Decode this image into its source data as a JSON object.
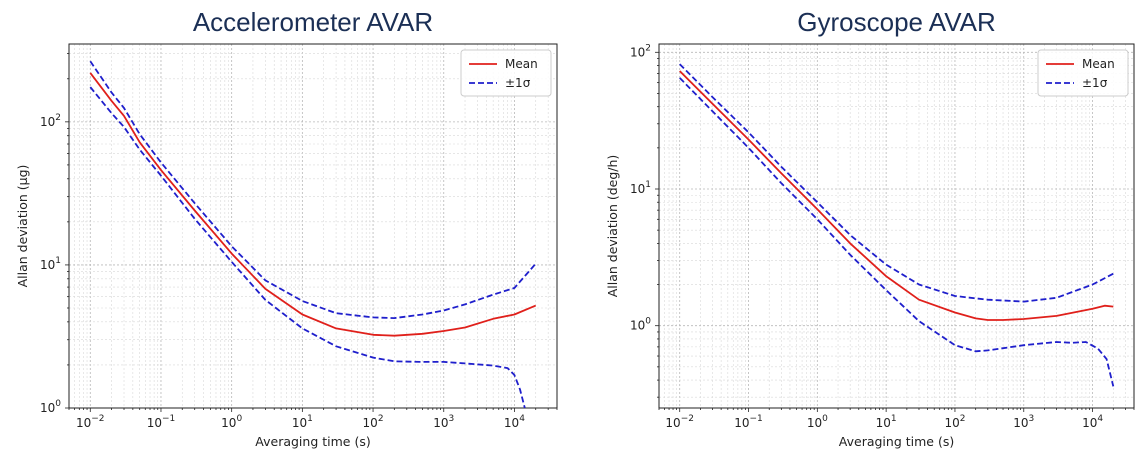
{
  "chart_data": [
    {
      "type": "line",
      "title": "Accelerometer AVAR",
      "xlabel": "Averaging time (s)",
      "ylabel": "Allan deviation (μg)",
      "xscale": "log",
      "yscale": "log",
      "xlim": [
        0.005,
        40000
      ],
      "ylim": [
        1,
        350
      ],
      "grid": true,
      "legend_location": "upper right",
      "xticks": [
        {
          "value": 0.01,
          "base": "10",
          "exp": "−2"
        },
        {
          "value": 0.1,
          "base": "10",
          "exp": "−1"
        },
        {
          "value": 1,
          "base": "10",
          "exp": "0"
        },
        {
          "value": 10,
          "base": "10",
          "exp": "1"
        },
        {
          "value": 100,
          "base": "10",
          "exp": "2"
        },
        {
          "value": 1000,
          "base": "10",
          "exp": "3"
        },
        {
          "value": 10000,
          "base": "10",
          "exp": "4"
        }
      ],
      "yticks": [
        {
          "value": 1,
          "base": "10",
          "exp": "0"
        },
        {
          "value": 10,
          "base": "10",
          "exp": "1"
        },
        {
          "value": 100,
          "base": "10",
          "exp": "2"
        }
      ],
      "series": [
        {
          "name": "Mean",
          "style": "solid",
          "color": "#e0201b",
          "x": [
            0.01,
            0.02,
            0.03,
            0.05,
            0.1,
            0.3,
            1,
            3,
            10,
            30,
            100,
            200,
            500,
            1000,
            2000,
            5000,
            10000,
            20000
          ],
          "y": [
            220,
            140,
            110,
            72,
            46,
            24,
            12,
            6.8,
            4.5,
            3.6,
            3.25,
            3.2,
            3.3,
            3.45,
            3.65,
            4.2,
            4.5,
            5.2
          ]
        },
        {
          "name": "+1σ",
          "style": "dashed",
          "color": "#1f1fcc",
          "show_in_legend": true,
          "legend_label": "±1σ",
          "x": [
            0.01,
            0.02,
            0.03,
            0.05,
            0.1,
            0.3,
            1,
            3,
            10,
            30,
            100,
            200,
            500,
            1000,
            2000,
            5000,
            10000,
            20000
          ],
          "y": [
            265,
            160,
            125,
            82,
            52,
            27,
            13.5,
            7.8,
            5.6,
            4.6,
            4.3,
            4.25,
            4.5,
            4.8,
            5.3,
            6.2,
            6.9,
            10.2
          ]
        },
        {
          "name": "-1σ",
          "style": "dashed",
          "color": "#1f1fcc",
          "show_in_legend": false,
          "x": [
            0.01,
            0.02,
            0.03,
            0.05,
            0.1,
            0.3,
            1,
            3,
            10,
            30,
            100,
            200,
            500,
            1000,
            2000,
            5000,
            8000,
            10000,
            12000,
            14000
          ],
          "y": [
            175,
            115,
            92,
            64,
            42,
            21,
            10.5,
            5.7,
            3.6,
            2.7,
            2.25,
            2.12,
            2.1,
            2.1,
            2.05,
            1.98,
            1.9,
            1.7,
            1.35,
            1.0
          ]
        }
      ]
    },
    {
      "type": "line",
      "title": "Gyroscope AVAR",
      "xlabel": "Averaging time (s)",
      "ylabel": "Allan deviation (deg/h)",
      "xscale": "log",
      "yscale": "log",
      "xlim": [
        0.005,
        40000
      ],
      "ylim": [
        0.25,
        115
      ],
      "grid": true,
      "legend_location": "upper right",
      "xticks": [
        {
          "value": 0.01,
          "base": "10",
          "exp": "−2"
        },
        {
          "value": 0.1,
          "base": "10",
          "exp": "−1"
        },
        {
          "value": 1,
          "base": "10",
          "exp": "0"
        },
        {
          "value": 10,
          "base": "10",
          "exp": "1"
        },
        {
          "value": 100,
          "base": "10",
          "exp": "2"
        },
        {
          "value": 1000,
          "base": "10",
          "exp": "3"
        },
        {
          "value": 10000,
          "base": "10",
          "exp": "4"
        }
      ],
      "yticks": [
        {
          "value": 1,
          "base": "10",
          "exp": "0"
        },
        {
          "value": 10,
          "base": "10",
          "exp": "1"
        },
        {
          "value": 100,
          "base": "10",
          "exp": "2"
        }
      ],
      "series": [
        {
          "name": "Mean",
          "style": "solid",
          "color": "#e0201b",
          "x": [
            0.01,
            0.03,
            0.1,
            0.3,
            1,
            3,
            10,
            30,
            100,
            200,
            300,
            500,
            1000,
            3000,
            10000,
            15000,
            20000
          ],
          "y": [
            73,
            42,
            23,
            13,
            7.1,
            4.0,
            2.3,
            1.55,
            1.25,
            1.13,
            1.1,
            1.1,
            1.12,
            1.18,
            1.33,
            1.4,
            1.38
          ]
        },
        {
          "name": "+1σ",
          "style": "dashed",
          "color": "#1f1fcc",
          "show_in_legend": true,
          "legend_label": "±1σ",
          "x": [
            0.01,
            0.03,
            0.1,
            0.3,
            1,
            3,
            10,
            30,
            100,
            300,
            1000,
            3000,
            10000,
            20000
          ],
          "y": [
            82,
            47,
            26,
            14.5,
            8.0,
            4.6,
            2.8,
            2.0,
            1.65,
            1.55,
            1.5,
            1.6,
            2.0,
            2.4
          ]
        },
        {
          "name": "-1σ",
          "style": "dashed",
          "color": "#1f1fcc",
          "show_in_legend": false,
          "x": [
            0.01,
            0.03,
            0.1,
            0.3,
            1,
            3,
            10,
            30,
            100,
            200,
            300,
            1000,
            3000,
            5000,
            8000,
            12000,
            16000,
            20000
          ],
          "y": [
            65,
            37,
            20,
            11,
            6.0,
            3.3,
            1.82,
            1.08,
            0.72,
            0.65,
            0.66,
            0.72,
            0.76,
            0.75,
            0.76,
            0.68,
            0.57,
            0.36
          ]
        }
      ]
    }
  ]
}
